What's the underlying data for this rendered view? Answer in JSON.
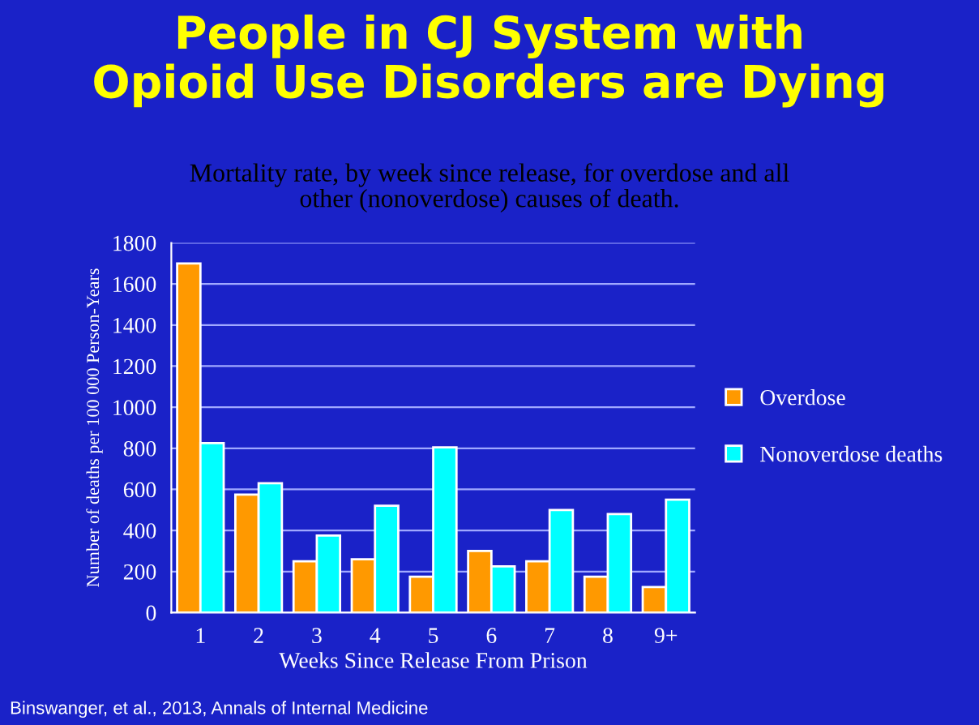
{
  "chart_data": {
    "type": "bar",
    "title": "People in CJ System with\nOpioid Use Disorders are Dying",
    "subtitle": "Mortality rate, by week since release, for overdose and all\nother (nonoverdose) causes of death.",
    "xlabel": "Weeks Since Release From Prison",
    "ylabel": "Number of deaths per 100 000 Person-Years",
    "categories": [
      "1",
      "2",
      "3",
      "4",
      "5",
      "6",
      "7",
      "8",
      "9+"
    ],
    "series": [
      {
        "name": "Overdose",
        "color": "#ff9900",
        "values": [
          1700,
          575,
          250,
          260,
          175,
          300,
          250,
          175,
          125
        ]
      },
      {
        "name": "Nonoverdose deaths",
        "color": "#00ffff",
        "values": [
          825,
          630,
          375,
          520,
          805,
          225,
          500,
          480,
          550
        ]
      }
    ],
    "ylim": [
      0,
      1800
    ],
    "yticks": [
      0,
      200,
      400,
      600,
      800,
      1000,
      1200,
      1400,
      1600,
      1800
    ],
    "grid": "y",
    "legend": "right",
    "annotations": [
      "Binswanger, et al., 2013, Annals of Internal Medicine"
    ]
  }
}
